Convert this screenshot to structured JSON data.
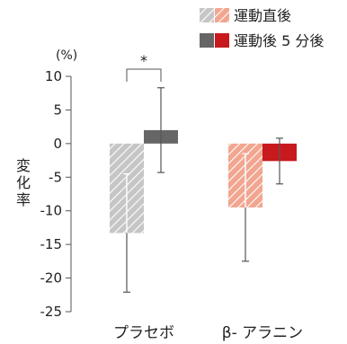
{
  "chart_data": {
    "type": "bar",
    "unit_label": "(%)",
    "ylabel": "変化率",
    "ylim": [
      -25,
      10
    ],
    "yticks": [
      10,
      5,
      0,
      -5,
      -10,
      -15,
      -20,
      -25
    ],
    "categories": [
      "プラセボ",
      "β- アラニン"
    ],
    "series": [
      {
        "name": "運動直後",
        "pattern": "hatched",
        "colors": [
          "#c4c4c4",
          "#f2a58f"
        ],
        "values": [
          -13.3,
          -9.5
        ],
        "error": [
          8.8,
          8.0
        ]
      },
      {
        "name": "運動後 5 分後",
        "pattern": "solid",
        "colors": [
          "#666666",
          "#c8191e"
        ],
        "values": [
          2.0,
          -2.6
        ],
        "error": [
          6.3,
          3.4
        ]
      }
    ],
    "legend_position": "top-right",
    "annotations": [
      {
        "text": "*",
        "between": [
          "プラセボ:運動直後",
          "プラセボ:運動後 5 分後"
        ]
      }
    ]
  }
}
